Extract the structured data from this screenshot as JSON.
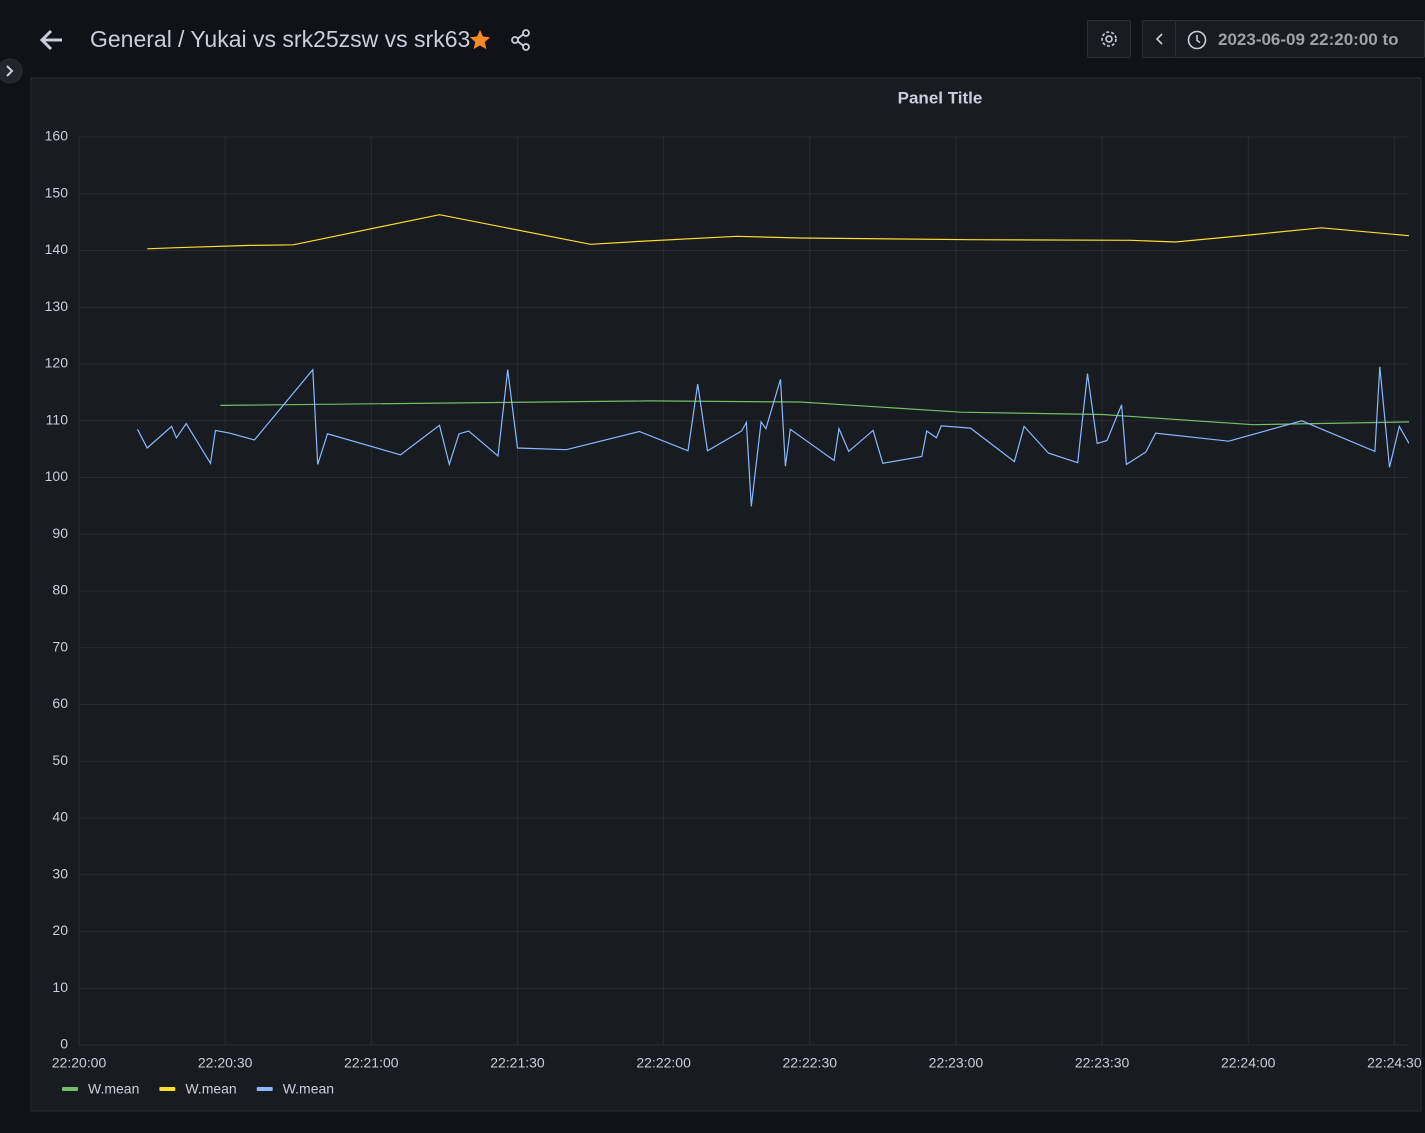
{
  "header": {
    "breadcrumb": "General",
    "dashboard_title": "/ Yukai vs srk25zsw vs srk63",
    "time_range": "2023-06-09 22:20:00 to"
  },
  "chart_data": {
    "type": "line",
    "title": "Panel Title",
    "xlim": [
      "22:20:00",
      "22:24:33"
    ],
    "xticks": [
      "22:20:00",
      "22:20:30",
      "22:21:00",
      "22:21:30",
      "22:22:00",
      "22:22:30",
      "22:23:00",
      "22:23:30",
      "22:24:00",
      "22:24:30"
    ],
    "ylim": [
      0,
      160
    ],
    "yticks": [
      0,
      10,
      20,
      30,
      40,
      50,
      60,
      70,
      80,
      90,
      100,
      110,
      120,
      130,
      140,
      150,
      160
    ],
    "grid": true,
    "legend": "bottom-left",
    "series": [
      {
        "name": "W.mean",
        "color": "#73bf69",
        "x": [
          "22:20:29",
          "22:21:57",
          "22:22:28",
          "22:23:01",
          "22:23:30",
          "22:24:01",
          "22:24:33"
        ],
        "values": [
          112.7,
          113.5,
          113.3,
          111.5,
          111.1,
          109.3,
          109.8
        ]
      },
      {
        "name": "W.mean",
        "color": "#fade2a",
        "x": [
          "22:20:14",
          "22:20:20",
          "22:20:35",
          "22:20:44",
          "22:21:14",
          "22:21:45",
          "22:21:55",
          "22:22:15",
          "22:22:28",
          "22:23:03",
          "22:23:36",
          "22:23:45",
          "22:24:01",
          "22:24:15",
          "22:24:33"
        ],
        "values": [
          140.3,
          140.5,
          140.9,
          141,
          146.3,
          141.1,
          141.6,
          142.5,
          142.2,
          141.9,
          141.8,
          141.5,
          142.8,
          144.0,
          142.6
        ]
      },
      {
        "name": "W.mean",
        "color": "#8ab8ff",
        "x": [
          "22:20:12",
          "22:20:14",
          "22:20:19",
          "22:20:20",
          "22:20:22",
          "22:20:27",
          "22:20:28",
          "22:20:31",
          "22:20:36",
          "22:20:48",
          "22:20:49",
          "22:20:51",
          "22:21:06",
          "22:21:14",
          "22:21:16",
          "22:21:18",
          "22:21:20",
          "22:21:26",
          "22:21:28",
          "22:21:30",
          "22:21:40",
          "22:21:55",
          "22:22:05",
          "22:22:07",
          "22:22:09",
          "22:22:16",
          "22:22:17",
          "22:22:18",
          "22:22:20",
          "22:22:21",
          "22:22:24",
          "22:22:25",
          "22:22:26",
          "22:22:35",
          "22:22:36",
          "22:22:38",
          "22:22:43",
          "22:22:45",
          "22:22:53",
          "22:22:54",
          "22:22:56",
          "22:22:57",
          "22:23:03",
          "22:23:12",
          "22:23:14",
          "22:23:19",
          "22:23:25",
          "22:23:27",
          "22:23:29",
          "22:23:31",
          "22:23:34",
          "22:23:35",
          "22:23:39",
          "22:23:41",
          "22:23:56",
          "22:24:11",
          "22:24:26",
          "22:24:27",
          "22:24:29",
          "22:24:31",
          "22:24:33"
        ],
        "values": [
          108.5,
          105.2,
          109,
          107,
          109.5,
          102.5,
          108.3,
          107.8,
          106.6,
          119,
          102.3,
          107.7,
          104,
          109.2,
          102.3,
          107.7,
          108.2,
          103.8,
          119,
          105.2,
          104.9,
          108.1,
          104.7,
          116.5,
          104.7,
          108.2,
          109.7,
          94.9,
          109.8,
          108.6,
          117.3,
          102,
          108.5,
          103,
          108.6,
          104.6,
          108.3,
          102.5,
          103.7,
          108.2,
          107,
          109.1,
          108.7,
          102.8,
          109,
          104.3,
          102.6,
          118.3,
          106,
          106.5,
          112.8,
          102.3,
          104.5,
          107.8,
          106.4,
          110,
          104.6,
          119.5,
          101.8,
          109,
          106
        ]
      }
    ]
  }
}
